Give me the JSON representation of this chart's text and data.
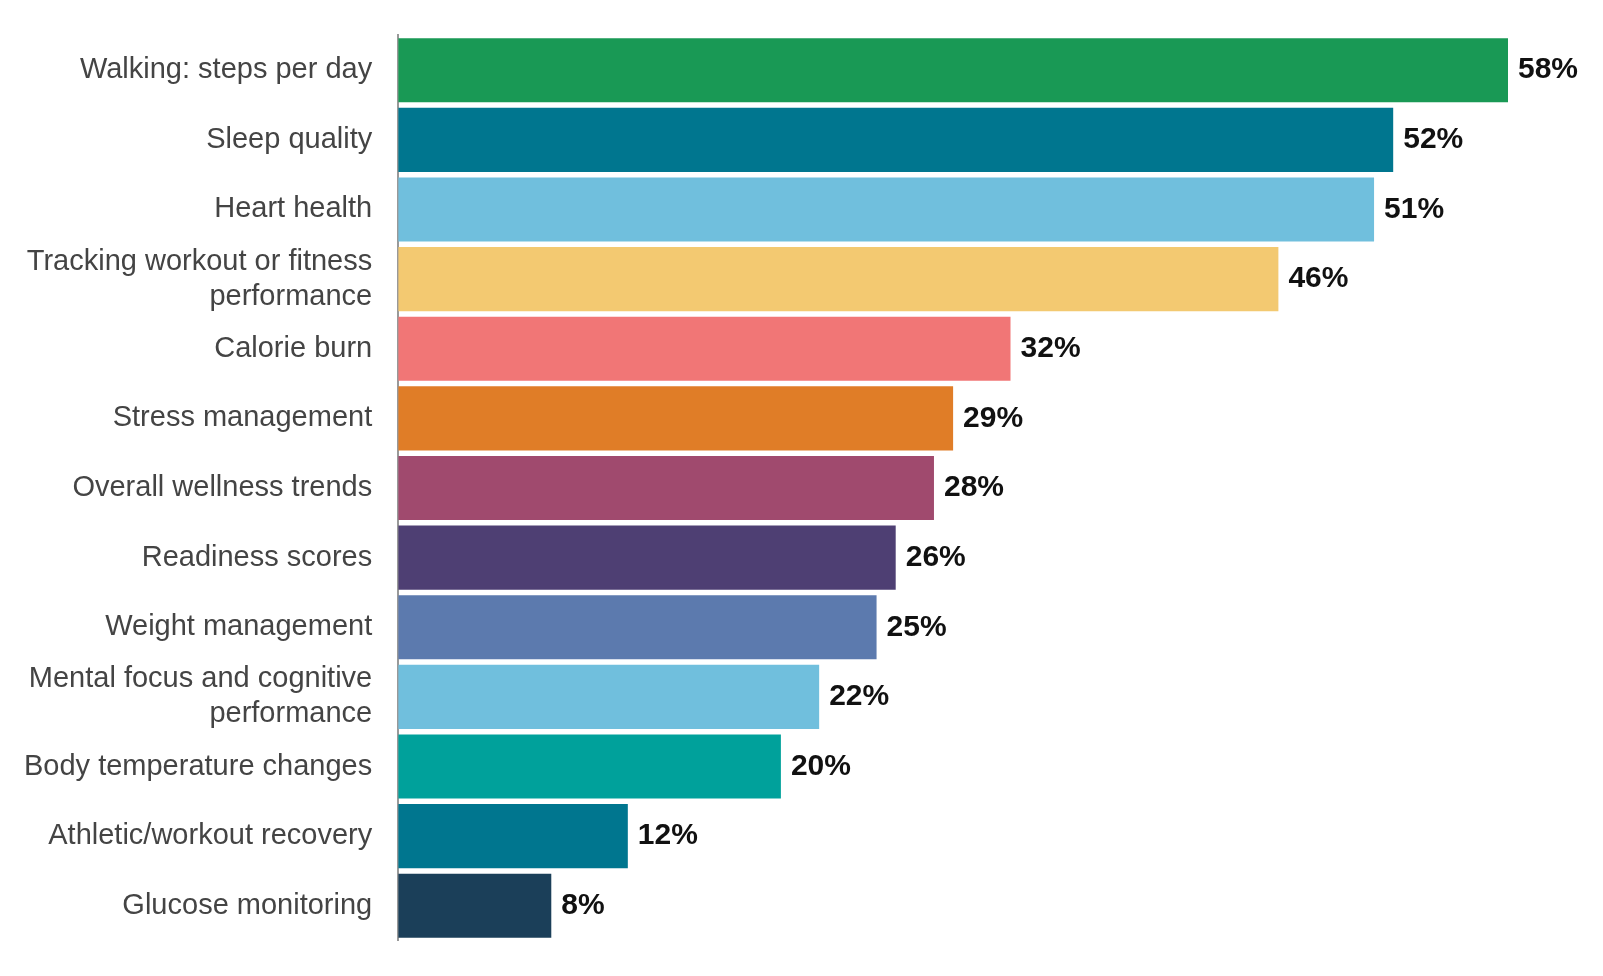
{
  "chart_data": {
    "type": "bar",
    "orientation": "horizontal",
    "data_labels": true,
    "categories": [
      "Walking: steps per day",
      "Sleep quality",
      "Heart health",
      "Tracking workout or fitness performance",
      "Calorie burn",
      "Stress management",
      "Overall wellness trends",
      "Readiness scores",
      "Weight management",
      "Mental focus and cognitive performance",
      "Body temperature changes",
      "Athletic/workout recovery",
      "Glucose monitoring"
    ],
    "values": [
      58,
      52,
      51,
      46,
      32,
      29,
      28,
      26,
      25,
      22,
      20,
      12,
      8
    ],
    "value_labels": [
      "58%",
      "52%",
      "51%",
      "46%",
      "32%",
      "29%",
      "28%",
      "26%",
      "25%",
      "22%",
      "20%",
      "12%",
      "8%"
    ],
    "colors": [
      "#199955",
      "#00768f",
      "#70bfdd",
      "#f3c971",
      "#f17676",
      "#e07d27",
      "#a04a6e",
      "#4e3f73",
      "#5c7aae",
      "#70bfdd",
      "#00a19b",
      "#00768f",
      "#1b3f59"
    ]
  }
}
